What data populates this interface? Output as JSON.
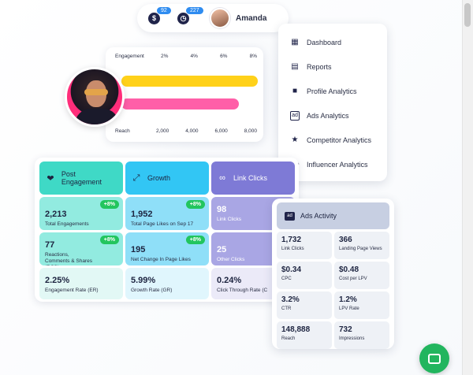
{
  "topbar": {
    "badge1": "92",
    "badge2": "227",
    "user_name": "Amanda",
    "icons": [
      "dollar-icon",
      "clock-icon"
    ]
  },
  "engagement_card": {
    "top_label": "Engagement",
    "top_ticks": [
      "2%",
      "4%",
      "6%",
      "8%"
    ],
    "bottom_label": "Reach",
    "bottom_ticks": [
      "2,000",
      "4,000",
      "6,000",
      "8,000"
    ],
    "bars": [
      {
        "name": "engagement",
        "value_fraction": 0.96,
        "color": "#ffd11a"
      },
      {
        "name": "reach",
        "value_fraction": 0.83,
        "color": "#ff5fa8"
      }
    ]
  },
  "menu": {
    "items": [
      {
        "label": "Dashboard",
        "icon": "dashboard-icon"
      },
      {
        "label": "Reports",
        "icon": "report-icon"
      },
      {
        "label": "Profile Analytics",
        "icon": "profile-icon"
      },
      {
        "label": "Ads Analytics",
        "icon": "ad-icon"
      },
      {
        "label": "Competitor Analytics",
        "icon": "trophy-icon"
      },
      {
        "label": "Influencer Analytics",
        "icon": "users-icon"
      }
    ]
  },
  "metrics": {
    "columns": [
      {
        "title": "Post Engagement",
        "icon": "heart-icon",
        "colors": {
          "head": "#3fd9c6",
          "row": "#92ebe0",
          "row_last": "#e2f8f5"
        },
        "rows": [
          {
            "value": "2,213",
            "label": "Total Engagements",
            "pill": "+8%"
          },
          {
            "value": "77",
            "label": "Reactions, Comments & Shares (RCS)",
            "pill": "+8%"
          },
          {
            "value": "2.25%",
            "label": "Engagement Rate (ER)",
            "pill": ""
          }
        ]
      },
      {
        "title": "Growth",
        "icon": "expand-icon",
        "colors": {
          "head": "#32c6f4",
          "row": "#8fdff8",
          "row_last": "#e0f6fd"
        },
        "rows": [
          {
            "value": "1,952",
            "label": "Total Page Likes on Sep 17",
            "pill": "+8%"
          },
          {
            "value": "195",
            "label": "Net Change In Page Likes",
            "pill": "+8%"
          },
          {
            "value": "5.99%",
            "label": "Growth Rate (GR)",
            "pill": ""
          }
        ]
      },
      {
        "title": "Link Clicks",
        "icon": "link-icon",
        "colors": {
          "head": "#7e7ad6",
          "row": "#a9a6e4",
          "row_last": "#ebeaf8"
        },
        "rows": [
          {
            "value": "98",
            "label": "Link Clicks",
            "pill": ""
          },
          {
            "value": "25",
            "label": "Other Clicks",
            "pill": ""
          },
          {
            "value": "0.24%",
            "label": "Click Through Rate (C",
            "pill": ""
          }
        ]
      }
    ]
  },
  "ads": {
    "title": "Ads Activity",
    "icon_text": "ad",
    "cells": [
      {
        "value": "1,732",
        "label": "Link Clicks"
      },
      {
        "value": "366",
        "label": "Landing Page Views"
      },
      {
        "value": "$0.34",
        "label": "CPC"
      },
      {
        "value": "$0.48",
        "label": "Cost per LPV"
      },
      {
        "value": "3.2%",
        "label": "CTR"
      },
      {
        "value": "1.2%",
        "label": "LPV Rate"
      },
      {
        "value": "148,888",
        "label": "Reach"
      },
      {
        "value": "732",
        "label": "Impressions"
      }
    ]
  },
  "chat": {
    "icon": "chat-icon",
    "color": "#22b55e"
  }
}
